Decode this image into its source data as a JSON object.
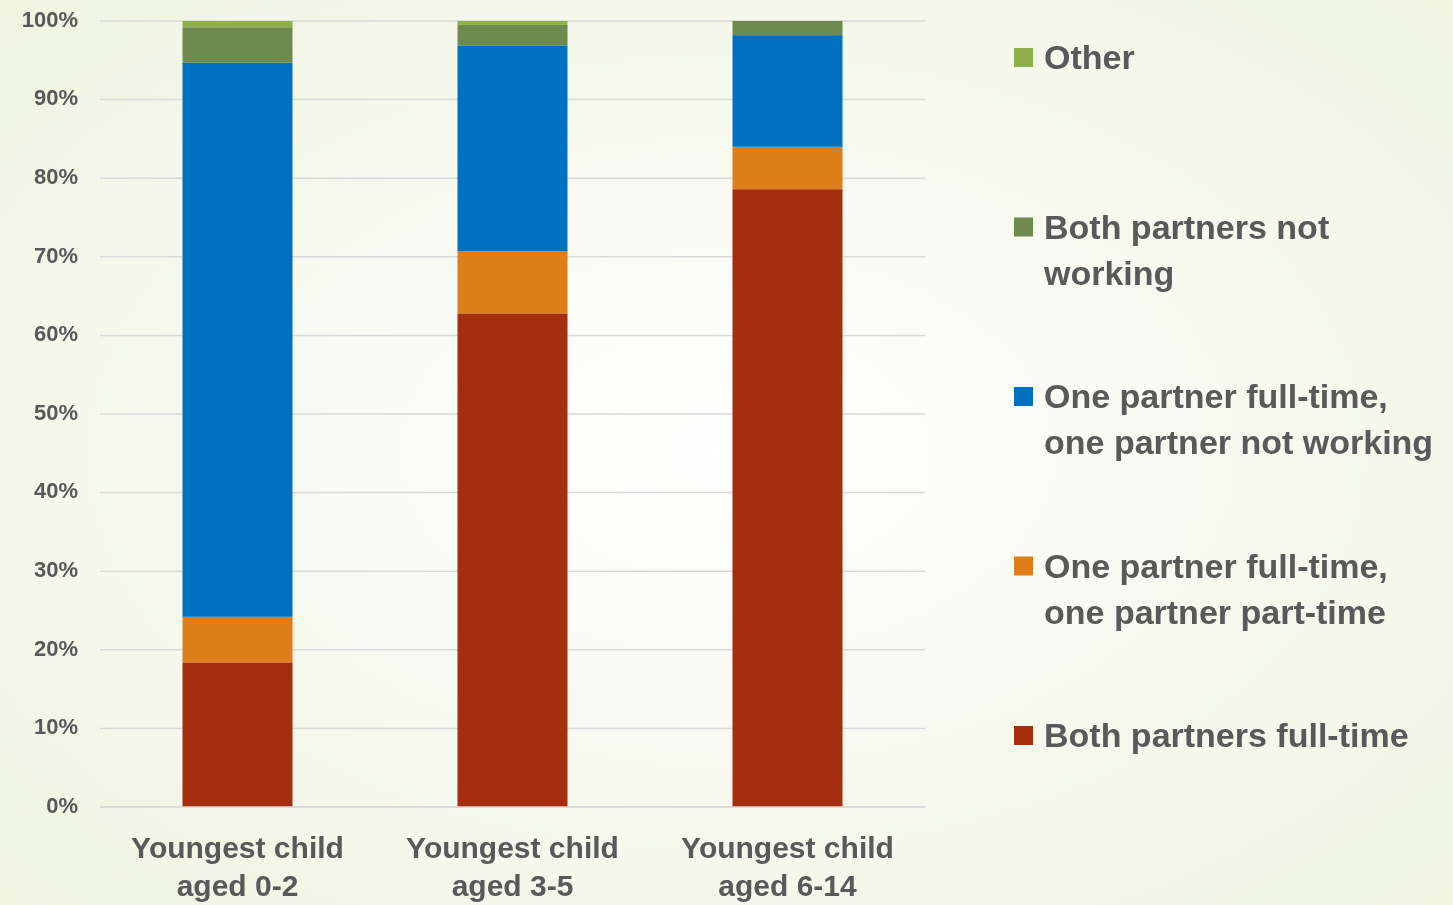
{
  "chart_data": {
    "type": "bar",
    "stacked": true,
    "categories": [
      "Youngest child aged 0-2",
      "Youngest child aged 3-5",
      "Youngest child aged 6-14"
    ],
    "series": [
      {
        "name": "Both partners full-time",
        "color": "#a52d10",
        "values": [
          18.4,
          62.8,
          78.6
        ]
      },
      {
        "name": "One partner full-time, one partner part-time",
        "color": "#de7e1a",
        "values": [
          5.8,
          7.9,
          5.4
        ]
      },
      {
        "name": "One partner full-time, one partner not working",
        "color": "#0070c0",
        "values": [
          70.5,
          26.2,
          14.2
        ]
      },
      {
        "name": "Both partners not working",
        "color": "#6e8a4e",
        "values": [
          4.5,
          2.6,
          1.8
        ]
      },
      {
        "name": "Other",
        "color": "#8db04a",
        "values": [
          0.8,
          0.5,
          0
        ]
      }
    ],
    "ylim": [
      0,
      100
    ],
    "yticks": [
      {
        "value": 0,
        "label": "0%"
      },
      {
        "value": 10,
        "label": "10%"
      },
      {
        "value": 20,
        "label": "20%"
      },
      {
        "value": 30,
        "label": "30%"
      },
      {
        "value": 40,
        "label": "40%"
      },
      {
        "value": 50,
        "label": "50%"
      },
      {
        "value": 60,
        "label": "60%"
      },
      {
        "value": 70,
        "label": "70%"
      },
      {
        "value": 80,
        "label": "80%"
      },
      {
        "value": 90,
        "label": "90%"
      },
      {
        "value": 100,
        "label": "100%"
      }
    ],
    "grid": "y",
    "legend": "right"
  }
}
